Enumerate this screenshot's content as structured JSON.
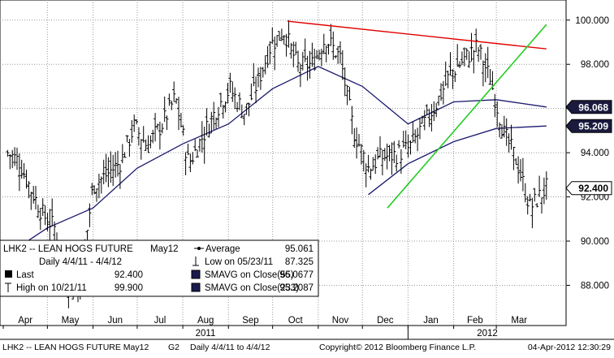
{
  "chart_data": {
    "type": "line",
    "subtype": "ohlc-bar",
    "instrument": "LHK2",
    "y_ticks": [
      "88.000",
      "90.000",
      "92.000",
      "94.000",
      "96.000",
      "98.000",
      "100.000"
    ],
    "ylim": [
      86.4,
      100.8
    ],
    "x_month_labels": [
      "Apr",
      "May",
      "Jun",
      "Jul",
      "Aug",
      "Sep",
      "Oct",
      "Nov",
      "Dec",
      "Jan",
      "Feb",
      "Mar"
    ],
    "x_year_labels": [
      "2011",
      "2012"
    ],
    "grid": true,
    "series": [
      {
        "name": "LHK2 -- LEAN HOGS FUTURE May12",
        "kind": "ohlc",
        "color": "#000000",
        "x": [
          "2011-04-04",
          "2011-04-12",
          "2011-04-20",
          "2011-04-28",
          "2011-05-06",
          "2011-05-14",
          "2011-05-23",
          "2011-06-01",
          "2011-06-10",
          "2011-06-20",
          "2011-06-29",
          "2011-07-08",
          "2011-07-18",
          "2011-07-27",
          "2011-08-05",
          "2011-08-15",
          "2011-08-24",
          "2011-09-02",
          "2011-09-12",
          "2011-09-21",
          "2011-09-30",
          "2011-10-09",
          "2011-10-18",
          "2011-10-28",
          "2011-11-06",
          "2011-11-16",
          "2011-11-25",
          "2011-12-05",
          "2011-12-14",
          "2011-12-23",
          "2012-01-02",
          "2012-01-11",
          "2012-01-20",
          "2012-01-30",
          "2012-02-08",
          "2012-02-17",
          "2012-02-26",
          "2012-03-06",
          "2012-03-15",
          "2012-03-24",
          "2012-04-04"
        ],
        "close": [
          94.0,
          93.6,
          92.3,
          91.2,
          90.6,
          88.2,
          87.9,
          92.5,
          93.0,
          93.6,
          95.2,
          94.3,
          95.3,
          96.5,
          93.5,
          94.8,
          96.0,
          96.9,
          95.8,
          97.2,
          98.9,
          99.5,
          97.9,
          98.0,
          99.2,
          98.3,
          95.0,
          93.3,
          93.8,
          93.9,
          94.2,
          95.2,
          96.2,
          97.6,
          98.2,
          98.8,
          97.3,
          94.9,
          93.6,
          91.5,
          92.4
        ]
      },
      {
        "name": "SMAVG on Close(55)",
        "color": "#1a1a6e",
        "last": 96.0677,
        "x": [
          "2011-04-04",
          "2011-05-01",
          "2011-06-01",
          "2011-07-01",
          "2011-08-01",
          "2011-09-01",
          "2011-10-01",
          "2011-11-01",
          "2011-12-01",
          "2012-01-01",
          "2012-02-01",
          "2012-03-01",
          "2012-04-04"
        ],
        "y": [
          89.4,
          90.6,
          91.5,
          93.3,
          94.4,
          95.3,
          96.9,
          97.9,
          97.0,
          95.3,
          96.3,
          96.4,
          96.07
        ]
      },
      {
        "name": "SMAVG on Close(233)",
        "color": "#1a1a6e",
        "last": 95.2087,
        "x": [
          "2011-12-05",
          "2012-01-01",
          "2012-02-01",
          "2012-03-01",
          "2012-04-04"
        ],
        "y": [
          92.1,
          93.5,
          94.5,
          95.1,
          95.21
        ]
      },
      {
        "name": "resistance-trendline",
        "color": "#e00000",
        "x": [
          "2011-10-11",
          "2012-04-04"
        ],
        "y": [
          99.95,
          98.7
        ]
      },
      {
        "name": "support-trendline",
        "color": "#22cc22",
        "x": [
          "2011-12-18",
          "2012-04-04"
        ],
        "y": [
          91.5,
          99.8
        ]
      }
    ],
    "price_labels": [
      "96.068",
      "95.209",
      "92.400"
    ],
    "legend": {
      "line1_instrument": "LHK2 -- LEAN HOGS FUTURE",
      "line1_contract": "May12",
      "line2": "Daily 4/4/11 - 4/4/12",
      "rows": [
        {
          "label": "Average",
          "value": "95.061"
        },
        {
          "label": "Low on 05/23/11",
          "value": "87.325"
        },
        {
          "label": "Last",
          "value": "92.400"
        },
        {
          "label": "SMAVG on Close(55)",
          "value": "96.0677"
        },
        {
          "label": "High on 10/21/11",
          "value": "99.900"
        },
        {
          "label": "SMAVG on Close(233)",
          "value": "95.2087"
        }
      ]
    },
    "footer": {
      "left": "LHK2 -- LEAN HOGS FUTURE May12",
      "chart_id": "G2",
      "range": "Daily 4/4/11 to 4/4/12",
      "copyright": "Copyright© 2012 Bloomberg Finance L.P.",
      "timestamp": "04-Apr-2012 12:30:29"
    }
  }
}
